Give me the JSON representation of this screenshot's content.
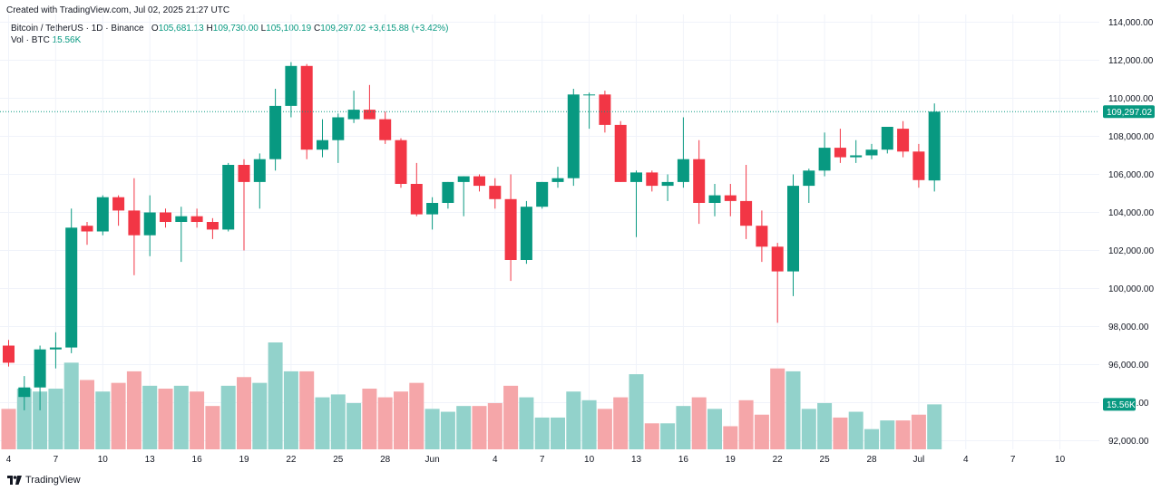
{
  "header": {
    "created": "Created with TradingView.com, Jul 02, 2025 21:27 UTC"
  },
  "legend": {
    "symbol": "Bitcoin / TetherUS · 1D · Binance",
    "o_label": "O",
    "o_value": "105,681.13",
    "h_label": "H",
    "h_value": "109,730.00",
    "l_label": "L",
    "l_value": "105,100.19",
    "c_label": "C",
    "c_value": "109,297.02",
    "change": "+3,615.88 (+3.42%)",
    "vol_label": "Vol · BTC",
    "vol_value": "15.56K"
  },
  "footer": {
    "brand": "TradingView"
  },
  "colors": {
    "up": "#089981",
    "down": "#f23645",
    "vol_up": "#92d2cb",
    "vol_down": "#f5a6a9",
    "grid": "#f0f3fa"
  },
  "chart_data": {
    "type": "candlestick",
    "title": "Bitcoin / TetherUS · 1D · Binance",
    "ylim": [
      91000,
      114500
    ],
    "y_ticks": [
      92000,
      94000,
      96000,
      98000,
      100000,
      102000,
      104000,
      106000,
      108000,
      110000,
      112000,
      114000
    ],
    "y_tick_labels": [
      "92,000.00",
      "94,000.00",
      "96,000.00",
      "98,000.00",
      "100,000.00",
      "102,000.00",
      "104,000.00",
      "106,000.00",
      "108,000.00",
      "110,000.00",
      "112,000.00",
      "114,000.00"
    ],
    "x_range": [
      0,
      69
    ],
    "x_ticks": [
      0,
      3,
      6,
      9,
      12,
      15,
      18,
      21,
      24,
      27,
      31,
      34,
      37,
      40,
      43,
      46,
      49,
      52,
      55,
      58,
      61,
      64,
      67
    ],
    "x_tick_labels": [
      "4",
      "7",
      "10",
      "13",
      "16",
      "19",
      "22",
      "25",
      "28",
      "Jun",
      "4",
      "7",
      "10",
      "13",
      "16",
      "19",
      "22",
      "25",
      "28",
      "Jul",
      "4",
      "7",
      "10"
    ],
    "last_price": 109297.02,
    "last_price_label": "109,297.02",
    "last_volume": 15.56,
    "last_volume_label": "15.56K",
    "volume_max": 37,
    "candles": [
      {
        "o": 97000,
        "h": 97300,
        "l": 95900,
        "c": 96100,
        "v": 14
      },
      {
        "o": 94300,
        "h": 95400,
        "l": 93600,
        "c": 94800,
        "v": 21
      },
      {
        "o": 94800,
        "h": 97000,
        "l": 93600,
        "c": 96800,
        "v": 20
      },
      {
        "o": 96800,
        "h": 97700,
        "l": 95800,
        "c": 96900,
        "v": 21
      },
      {
        "o": 96900,
        "h": 104200,
        "l": 96600,
        "c": 103200,
        "v": 30
      },
      {
        "o": 103300,
        "h": 103500,
        "l": 102300,
        "c": 103000,
        "v": 24
      },
      {
        "o": 103000,
        "h": 104900,
        "l": 102800,
        "c": 104800,
        "v": 20
      },
      {
        "o": 104800,
        "h": 104900,
        "l": 103300,
        "c": 104100,
        "v": 23
      },
      {
        "o": 104100,
        "h": 105800,
        "l": 100700,
        "c": 102800,
        "v": 27
      },
      {
        "o": 102800,
        "h": 104900,
        "l": 101700,
        "c": 104000,
        "v": 22
      },
      {
        "o": 104000,
        "h": 104200,
        "l": 103200,
        "c": 103500,
        "v": 21
      },
      {
        "o": 103500,
        "h": 104300,
        "l": 101400,
        "c": 103800,
        "v": 22
      },
      {
        "o": 103800,
        "h": 104200,
        "l": 103200,
        "c": 103500,
        "v": 20
      },
      {
        "o": 103500,
        "h": 103700,
        "l": 102600,
        "c": 103100,
        "v": 15
      },
      {
        "o": 103100,
        "h": 106600,
        "l": 103000,
        "c": 106500,
        "v": 22
      },
      {
        "o": 106500,
        "h": 106800,
        "l": 102000,
        "c": 105600,
        "v": 25
      },
      {
        "o": 105600,
        "h": 107100,
        "l": 104200,
        "c": 106800,
        "v": 23
      },
      {
        "o": 106800,
        "h": 110500,
        "l": 106200,
        "c": 109600,
        "v": 37
      },
      {
        "o": 109600,
        "h": 111900,
        "l": 109000,
        "c": 111700,
        "v": 27
      },
      {
        "o": 111700,
        "h": 111800,
        "l": 106800,
        "c": 107300,
        "v": 27
      },
      {
        "o": 107300,
        "h": 108900,
        "l": 106900,
        "c": 107800,
        "v": 18
      },
      {
        "o": 107800,
        "h": 109200,
        "l": 106600,
        "c": 109000,
        "v": 19
      },
      {
        "o": 108900,
        "h": 110400,
        "l": 108700,
        "c": 109400,
        "v": 16
      },
      {
        "o": 109400,
        "h": 110700,
        "l": 108900,
        "c": 108900,
        "v": 21
      },
      {
        "o": 108900,
        "h": 109300,
        "l": 107600,
        "c": 107800,
        "v": 18
      },
      {
        "o": 107800,
        "h": 107900,
        "l": 105300,
        "c": 105500,
        "v": 20
      },
      {
        "o": 105500,
        "h": 106600,
        "l": 103800,
        "c": 103900,
        "v": 23
      },
      {
        "o": 103900,
        "h": 104800,
        "l": 103100,
        "c": 104500,
        "v": 14
      },
      {
        "o": 104500,
        "h": 105600,
        "l": 104200,
        "c": 105600,
        "v": 13
      },
      {
        "o": 105600,
        "h": 105900,
        "l": 103800,
        "c": 105900,
        "v": 15
      },
      {
        "o": 105900,
        "h": 106000,
        "l": 105100,
        "c": 105400,
        "v": 15
      },
      {
        "o": 105400,
        "h": 105800,
        "l": 104200,
        "c": 104700,
        "v": 16
      },
      {
        "o": 104700,
        "h": 106000,
        "l": 100400,
        "c": 101500,
        "v": 22
      },
      {
        "o": 101500,
        "h": 104600,
        "l": 101300,
        "c": 104300,
        "v": 18
      },
      {
        "o": 104300,
        "h": 105600,
        "l": 104200,
        "c": 105600,
        "v": 11
      },
      {
        "o": 105600,
        "h": 106400,
        "l": 105300,
        "c": 105800,
        "v": 11
      },
      {
        "o": 105800,
        "h": 110500,
        "l": 105400,
        "c": 110200,
        "v": 20
      },
      {
        "o": 110200,
        "h": 110300,
        "l": 108400,
        "c": 110200,
        "v": 17
      },
      {
        "o": 110200,
        "h": 110400,
        "l": 108200,
        "c": 108600,
        "v": 14
      },
      {
        "o": 108600,
        "h": 108800,
        "l": 105600,
        "c": 105600,
        "v": 18
      },
      {
        "o": 105600,
        "h": 106200,
        "l": 102700,
        "c": 106100,
        "v": 26
      },
      {
        "o": 106100,
        "h": 106200,
        "l": 105100,
        "c": 105400,
        "v": 9
      },
      {
        "o": 105400,
        "h": 106000,
        "l": 104600,
        "c": 105600,
        "v": 9
      },
      {
        "o": 105600,
        "h": 109000,
        "l": 105300,
        "c": 106800,
        "v": 15
      },
      {
        "o": 106800,
        "h": 107800,
        "l": 103400,
        "c": 104500,
        "v": 18
      },
      {
        "o": 104500,
        "h": 105500,
        "l": 103800,
        "c": 104900,
        "v": 14
      },
      {
        "o": 104900,
        "h": 105500,
        "l": 103800,
        "c": 104600,
        "v": 8
      },
      {
        "o": 104600,
        "h": 106500,
        "l": 102600,
        "c": 103300,
        "v": 17
      },
      {
        "o": 103300,
        "h": 104100,
        "l": 101400,
        "c": 102200,
        "v": 12
      },
      {
        "o": 102200,
        "h": 102400,
        "l": 98200,
        "c": 100900,
        "v": 28
      },
      {
        "o": 100900,
        "h": 106000,
        "l": 99600,
        "c": 105400,
        "v": 27
      },
      {
        "o": 105400,
        "h": 106300,
        "l": 104500,
        "c": 106200,
        "v": 14
      },
      {
        "o": 106200,
        "h": 108200,
        "l": 105900,
        "c": 107400,
        "v": 16
      },
      {
        "o": 107400,
        "h": 108400,
        "l": 106600,
        "c": 106900,
        "v": 11
      },
      {
        "o": 106900,
        "h": 107800,
        "l": 106600,
        "c": 107000,
        "v": 13
      },
      {
        "o": 107000,
        "h": 107600,
        "l": 106800,
        "c": 107300,
        "v": 7
      },
      {
        "o": 107300,
        "h": 108500,
        "l": 107100,
        "c": 108500,
        "v": 10
      },
      {
        "o": 108400,
        "h": 108800,
        "l": 106900,
        "c": 107200,
        "v": 10
      },
      {
        "o": 107200,
        "h": 107600,
        "l": 105300,
        "c": 105700,
        "v": 12
      },
      {
        "o": 105681.13,
        "h": 109730,
        "l": 105100.19,
        "c": 109297.02,
        "v": 15.56
      }
    ]
  }
}
